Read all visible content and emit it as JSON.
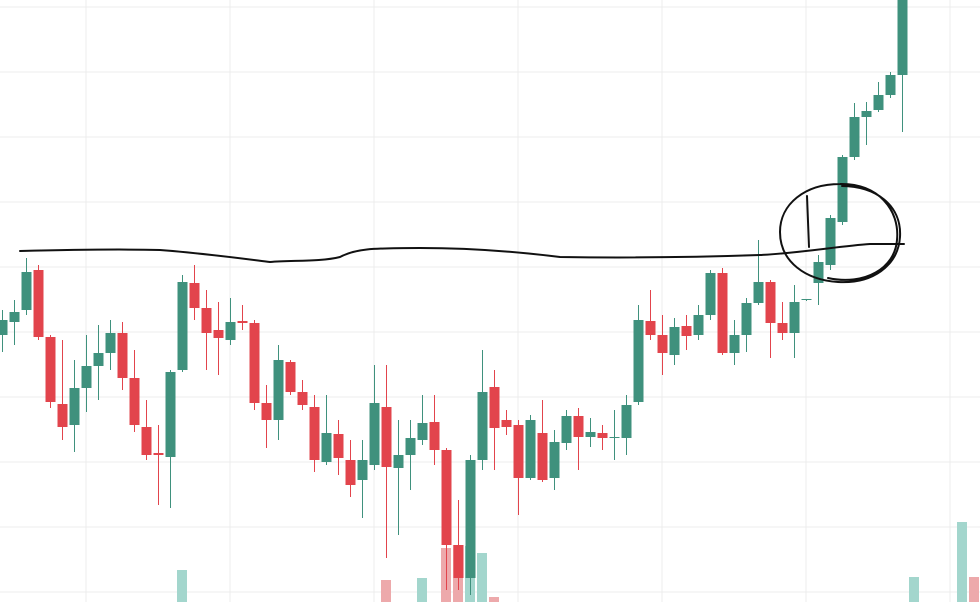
{
  "chart_data": {
    "type": "candlestick",
    "x": [
      0,
      1,
      2,
      3,
      4,
      5,
      6,
      7,
      8,
      9,
      10,
      11,
      12,
      13,
      14,
      15,
      16,
      17,
      18,
      19,
      20,
      21,
      22,
      23,
      24,
      25,
      26,
      27,
      28,
      29,
      30,
      31,
      32,
      33,
      34,
      35,
      36,
      37,
      38,
      39,
      40,
      41,
      42,
      43,
      44,
      45,
      46,
      47,
      48,
      49,
      50,
      51,
      52,
      53,
      54,
      55,
      56,
      57,
      58,
      59,
      60,
      61,
      62,
      63,
      64,
      65,
      66,
      67,
      68,
      69,
      70,
      71,
      72,
      73,
      74,
      75
    ],
    "open": [
      267,
      280,
      292,
      332,
      265,
      198,
      177,
      214,
      236,
      249,
      269,
      224,
      175,
      149,
      145,
      232,
      319,
      294,
      272,
      262,
      281,
      279,
      199,
      182,
      240,
      210,
      195,
      140,
      168,
      142,
      122,
      137,
      195,
      134,
      147,
      162,
      180,
      152,
      57,
      24,
      142,
      215,
      182,
      177,
      124,
      169,
      124,
      159,
      186,
      165,
      169,
      164,
      164,
      200,
      281,
      267,
      247,
      276,
      267,
      287,
      329,
      249,
      267,
      299,
      320,
      279,
      269,
      302,
      319,
      337,
      380,
      445,
      485,
      492,
      507,
      527
    ],
    "close": [
      282,
      290,
      330,
      265,
      200,
      175,
      214,
      236,
      249,
      269,
      224,
      177,
      147,
      147,
      230,
      320,
      294,
      269,
      264,
      280,
      279,
      199,
      182,
      242,
      210,
      197,
      142,
      169,
      144,
      117,
      142,
      199,
      135,
      147,
      164,
      179,
      152,
      57,
      24,
      142,
      210,
      174,
      175,
      124,
      182,
      122,
      160,
      186,
      165,
      170,
      164,
      165,
      197,
      282,
      267,
      249,
      275,
      266,
      287,
      329,
      249,
      267,
      299,
      320,
      279,
      269,
      300,
      303,
      340,
      384,
      445,
      485,
      491,
      507,
      527,
      602
    ],
    "high": [
      292,
      302,
      344,
      337,
      267,
      262,
      242,
      267,
      277,
      282,
      280,
      252,
      202,
      177,
      232,
      327,
      337,
      312,
      300,
      304,
      297,
      282,
      217,
      257,
      242,
      222,
      207,
      207,
      182,
      162,
      162,
      237,
      237,
      182,
      182,
      207,
      207,
      154,
      102,
      147,
      252,
      232,
      192,
      182,
      187,
      202,
      172,
      192,
      194,
      184,
      177,
      192,
      207,
      297,
      312,
      287,
      284,
      287,
      297,
      332,
      334,
      282,
      304,
      362,
      322,
      300,
      317,
      303,
      347,
      387,
      447,
      499,
      500,
      520,
      530,
      602
    ],
    "low": [
      250,
      257,
      287,
      262,
      194,
      162,
      150,
      190,
      202,
      232,
      212,
      170,
      142,
      97,
      94,
      230,
      282,
      232,
      227,
      257,
      272,
      192,
      154,
      162,
      207,
      192,
      130,
      137,
      127,
      105,
      84,
      132,
      44,
      67,
      112,
      157,
      137,
      12,
      12,
      7,
      132,
      132,
      167,
      87,
      122,
      120,
      112,
      152,
      132,
      155,
      152,
      142,
      147,
      197,
      262,
      227,
      237,
      252,
      262,
      282,
      247,
      237,
      250,
      297,
      244,
      262,
      244,
      301,
      297,
      332,
      377,
      442,
      457,
      490,
      504,
      470
    ],
    "up_color": "#3f917d",
    "down_color": "#e2444c",
    "xlim": [
      -0.1667,
      81.5
    ],
    "ylim": [
      0,
      602
    ],
    "grid": true,
    "volume": {
      "x": [
        15,
        32,
        35,
        37,
        38,
        39,
        40,
        41,
        76,
        80,
        81
      ],
      "values": [
        32,
        22,
        24,
        54,
        57,
        56,
        49,
        5,
        25,
        80,
        25
      ],
      "colors": [
        "#a3d6cd",
        "#eda9ab",
        "#a3d6cd",
        "#eda9ab",
        "#eda9ab",
        "#a3d6cd",
        "#a3d6cd",
        "#eda9ab",
        "#a3d6cd",
        "#a3d6cd",
        "#eda9ab"
      ],
      "ylim": [
        0,
        602
      ]
    }
  }
}
